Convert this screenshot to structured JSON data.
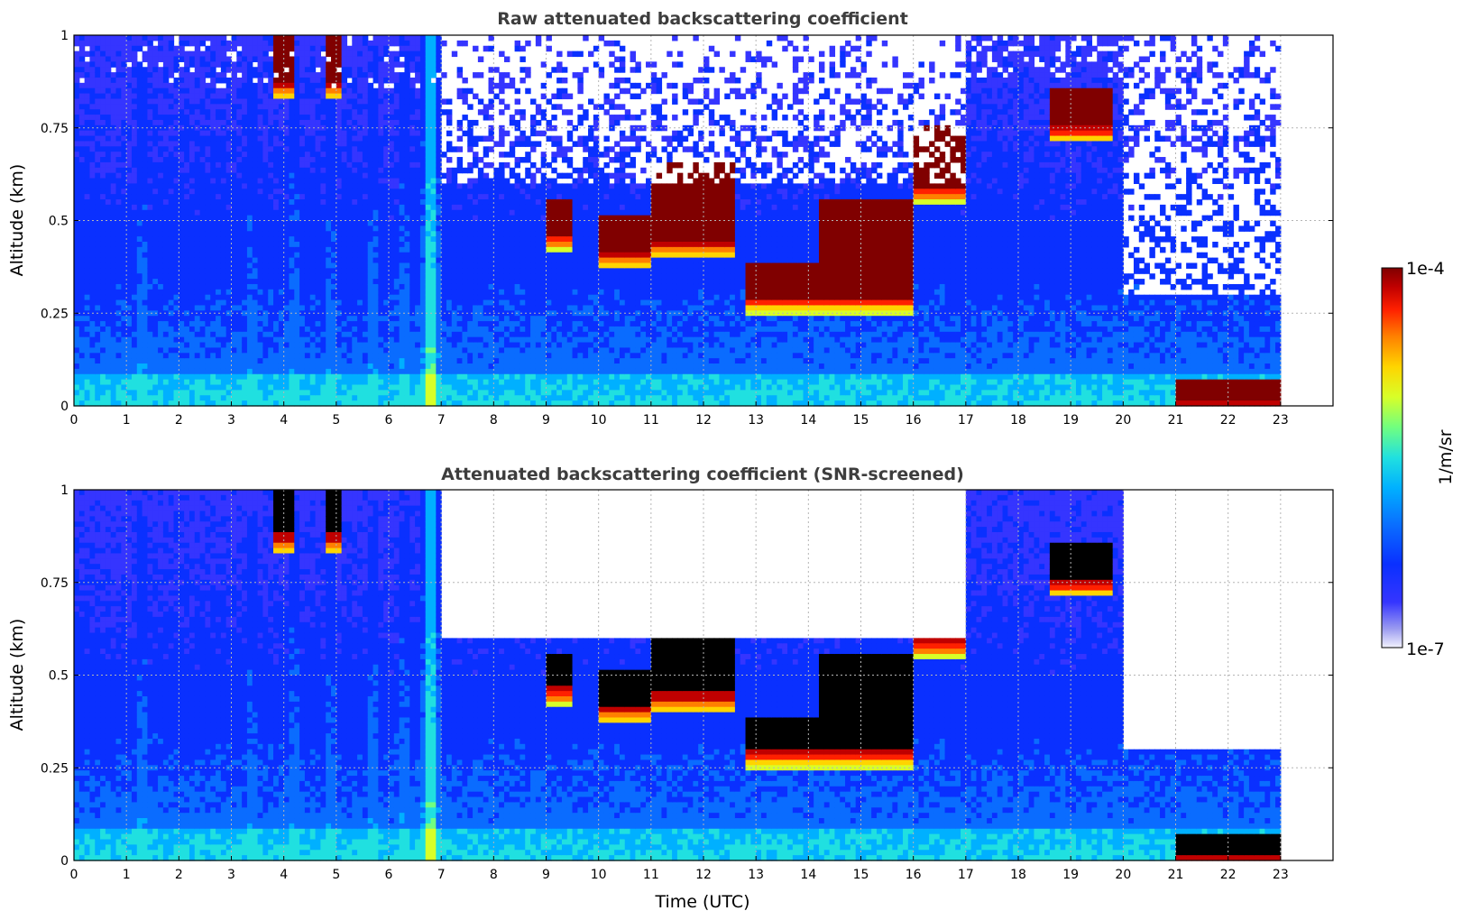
{
  "chart_data": [
    {
      "type": "heatmap",
      "title": "Raw attenuated backscattering coefficient",
      "xlabel": "",
      "ylabel": "Altitude (km)",
      "xlim": [
        0,
        24
      ],
      "ylim": [
        0,
        1
      ],
      "x_ticks": [
        "0",
        "1",
        "2",
        "3",
        "4",
        "5",
        "6",
        "7",
        "8",
        "9",
        "10",
        "11",
        "12",
        "13",
        "14",
        "15",
        "16",
        "17",
        "18",
        "19",
        "20",
        "21",
        "22",
        "23"
      ],
      "y_ticks": [
        "0",
        "0.25",
        "0.5",
        "0.75",
        "1"
      ],
      "grid": true,
      "data_extent_hours": [
        0,
        23
      ],
      "features": [
        {
          "kind": "surface_layer",
          "altitude_km": [
            0,
            0.08
          ],
          "level": "moderate"
        },
        {
          "kind": "strong_surface_layer",
          "time_utc": [
            21,
            23
          ],
          "altitude_km": [
            0.02,
            0.07
          ],
          "level": "saturated"
        },
        {
          "kind": "cloud",
          "time_utc": [
            3.8,
            4.2
          ],
          "altitude_km": [
            0.88,
            1.0
          ],
          "level": "saturated"
        },
        {
          "kind": "cloud",
          "time_utc": [
            4.8,
            5.1
          ],
          "altitude_km": [
            0.88,
            1.0
          ],
          "level": "saturated"
        },
        {
          "kind": "cloud",
          "time_utc": [
            9.0,
            9.5
          ],
          "altitude_km": [
            0.47,
            0.55
          ],
          "level": "saturated"
        },
        {
          "kind": "cloud",
          "time_utc": [
            10.0,
            11.0
          ],
          "altitude_km": [
            0.42,
            0.52
          ],
          "level": "saturated"
        },
        {
          "kind": "cloud",
          "time_utc": [
            11.0,
            12.6
          ],
          "altitude_km": [
            0.45,
            0.65
          ],
          "level": "saturated"
        },
        {
          "kind": "cloud",
          "time_utc": [
            12.8,
            14.2
          ],
          "altitude_km": [
            0.3,
            0.38
          ],
          "level": "saturated"
        },
        {
          "kind": "cloud",
          "time_utc": [
            14.2,
            16.0
          ],
          "altitude_km": [
            0.3,
            0.55
          ],
          "level": "saturated"
        },
        {
          "kind": "cloud",
          "time_utc": [
            16.0,
            17.0
          ],
          "altitude_km": [
            0.6,
            0.75
          ],
          "level": "saturated"
        },
        {
          "kind": "cloud",
          "time_utc": [
            18.6,
            19.8
          ],
          "altitude_km": [
            0.76,
            0.85
          ],
          "level": "saturated"
        }
      ]
    },
    {
      "type": "heatmap",
      "title": "Attenuated backscattering coefficient (SNR-screened)",
      "xlabel": "Time (UTC)",
      "ylabel": "Altitude (km)",
      "xlim": [
        0,
        24
      ],
      "ylim": [
        0,
        1
      ],
      "x_ticks": [
        "0",
        "1",
        "2",
        "3",
        "4",
        "5",
        "6",
        "7",
        "8",
        "9",
        "10",
        "11",
        "12",
        "13",
        "14",
        "15",
        "16",
        "17",
        "18",
        "19",
        "20",
        "21",
        "22",
        "23"
      ],
      "y_ticks": [
        "0",
        "0.25",
        "0.5",
        "0.75",
        "1"
      ],
      "grid": true,
      "data_extent_hours": [
        0,
        23
      ],
      "screened_out_regions": [
        {
          "time_utc": [
            7.0,
            17.0
          ],
          "altitude_km_above": 0.6
        },
        {
          "time_utc": [
            20.0,
            23.0
          ],
          "altitude_km_above": 0.3
        }
      ]
    }
  ],
  "colorbar": {
    "label": "1/m/sr",
    "max_label": "1e-4",
    "min_label": "1e-7",
    "colors": [
      "#e8e8fb",
      "#9a9af0",
      "#3535ff",
      "#0a30ff",
      "#0a6cff",
      "#00b0ff",
      "#20e0e0",
      "#70ff80",
      "#d8ff28",
      "#ffd400",
      "#ff8000",
      "#ff2000",
      "#c00000",
      "#800000"
    ]
  }
}
